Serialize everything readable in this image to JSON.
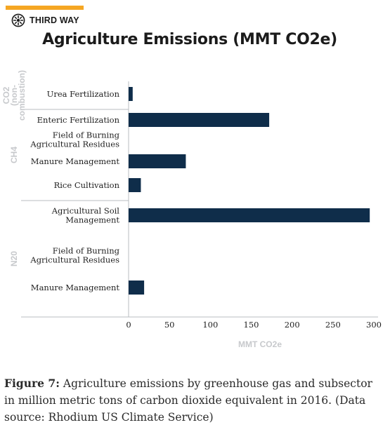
{
  "brand": {
    "name": "THIRD WAY",
    "accent": "#f5a623"
  },
  "title": "Agriculture Emissions (MMT CO2e)",
  "caption": {
    "lead": "Figure 7:",
    "text": "Agriculture emissions by greenhouse gas and subsector in million metric tons of carbon dioxide equivalent in 2016. (Data source: Rhodium US Climate Service)"
  },
  "chart_data": {
    "type": "bar",
    "orientation": "horizontal",
    "title": "Agriculture Emissions (MMT CO2e)",
    "xlabel": "MMT CO2e",
    "xlim": [
      0,
      300
    ],
    "xticks": [
      0,
      50,
      100,
      150,
      200,
      250,
      300
    ],
    "bar_color": "#0f2d4a",
    "grid": false,
    "groups": [
      {
        "name": "CO2 (non-combustion)",
        "label_lines": [
          "CO2",
          "(non-",
          "combustion)"
        ],
        "rows": [
          {
            "label": [
              "Urea Fertilization"
            ],
            "value": 5
          }
        ]
      },
      {
        "name": "CH4",
        "label_lines": [
          "CH4"
        ],
        "rows": [
          {
            "label": [
              "Enteric Fertilization"
            ],
            "value": 172
          },
          {
            "label": [
              "Field of Burning",
              "Agricultural Residues"
            ],
            "value": 0
          },
          {
            "label": [
              "Manure Management"
            ],
            "value": 70
          },
          {
            "label": [
              "Rice Cultivation"
            ],
            "value": 15
          }
        ]
      },
      {
        "name": "N20",
        "label_lines": [
          "N20"
        ],
        "rows": [
          {
            "label": [
              "Agricultural Soil",
              "Management"
            ],
            "value": 295
          },
          {
            "label": [
              "Field of Burning",
              "Agricultural Residues"
            ],
            "value": 0
          },
          {
            "label": [
              "Manure Management"
            ],
            "value": 19
          }
        ]
      }
    ]
  }
}
